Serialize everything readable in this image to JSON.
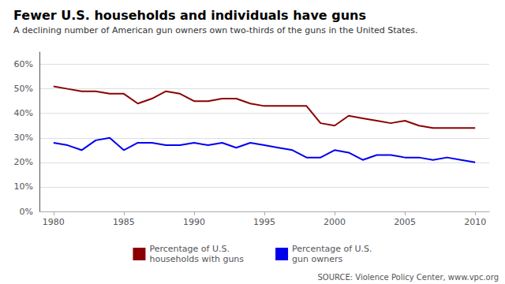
{
  "chart_data": {
    "type": "line",
    "title": "Fewer U.S. households and individuals have guns",
    "subtitle": "A declining number of American gun owners own two-thirds of the guns in the United States.",
    "annotations": [
      "SOURCE: Violence Policy Center, www.vpc.org"
    ],
    "x": [
      1980,
      1981,
      1982,
      1983,
      1984,
      1985,
      1986,
      1987,
      1988,
      1989,
      1990,
      1991,
      1992,
      1993,
      1994,
      1995,
      1996,
      1997,
      1998,
      1999,
      2000,
      2001,
      2002,
      2003,
      2004,
      2005,
      2006,
      2007,
      2008,
      2009,
      2010
    ],
    "series": [
      {
        "name": "Percentage of U.S.\nhouseholds with guns",
        "color": "#8b0000",
        "values": [
          51,
          50,
          49,
          49,
          48,
          48,
          44,
          46,
          49,
          48,
          45,
          45,
          46,
          46,
          44,
          43,
          43,
          43,
          43,
          36,
          35,
          39,
          38,
          37,
          36,
          37,
          35,
          34,
          34,
          34,
          34
        ]
      },
      {
        "name": "Percentage of U.S.\ngun owners",
        "color": "#0000ee",
        "values": [
          28,
          27,
          25,
          29,
          30,
          25,
          28,
          28,
          27,
          27,
          28,
          27,
          28,
          26,
          28,
          27,
          26,
          25,
          22,
          22,
          25,
          24,
          21,
          23,
          23,
          22,
          22,
          21,
          22,
          21,
          20
        ]
      }
    ],
    "xlim": [
      1979,
      2011
    ],
    "xticks": [
      1980,
      1985,
      1990,
      1995,
      2000,
      2005,
      2010
    ],
    "ylim": [
      0,
      65
    ],
    "yticks": [
      {
        "value": 0,
        "label": "0%"
      },
      {
        "value": 10,
        "label": "10%"
      },
      {
        "value": 20,
        "label": "20%"
      },
      {
        "value": 30,
        "label": "30%"
      },
      {
        "value": 40,
        "label": "40%"
      },
      {
        "value": 50,
        "label": "50%"
      },
      {
        "value": 60,
        "label": "60%"
      }
    ],
    "grid": true,
    "legend": "bottom"
  }
}
